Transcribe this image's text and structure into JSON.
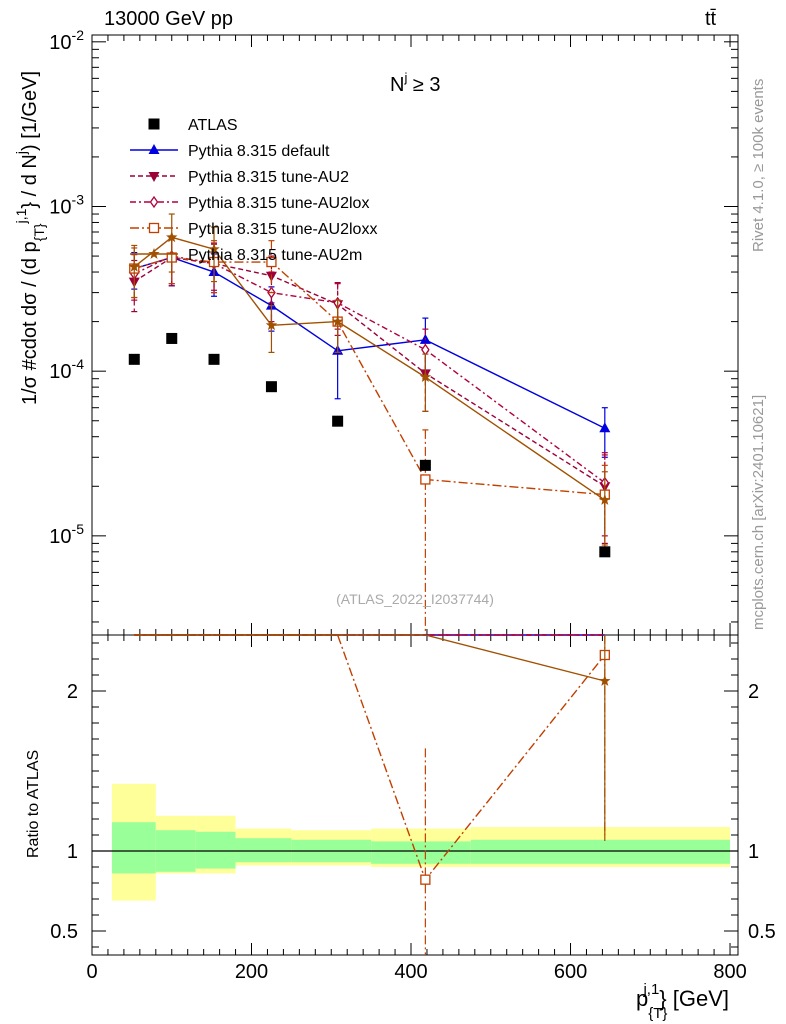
{
  "header": {
    "left": "13000 GeV pp",
    "right": "tt̄"
  },
  "side": {
    "rivet": "Rivet 4.1.0, ≥ 100k events",
    "mcplots": "mcplots.cern.ch [arXiv:2401.10621]"
  },
  "analysis_label": "(ATLAS_2022_I2037744)",
  "chart_data": {
    "type": "scatter",
    "title": "N^j ≥ 3",
    "xlabel": "p_{T}^{j,1} [GeV]",
    "ylabel": "1/σ #cdot dσ / (d p_{T}^{j,1} / d N^j) [1/GeV]",
    "ratio_ylabel": "Ratio to ATLAS",
    "xlim": [
      0,
      810
    ],
    "ylim": [
      2.5e-06,
      0.011
    ],
    "ratio_ylim": [
      0.35,
      2.35
    ],
    "x_ticks": [
      0,
      200,
      400,
      600,
      800
    ],
    "x_tick_labels": [
      "0",
      "200",
      "400",
      "600",
      "800"
    ],
    "y_ticks": [
      1e-05,
      0.0001,
      0.001,
      0.01
    ],
    "y_tick_labels": [
      "10^{-5}",
      "10^{-4}",
      "10^{-3}",
      "10^{-2}"
    ],
    "ratio_ticks": [
      0.5,
      1,
      2
    ],
    "ratio_tick_labels": [
      "0.5",
      "1",
      "2"
    ],
    "data": {
      "name": "ATLAS",
      "x": [
        53,
        100,
        153,
        225,
        308,
        418,
        643
      ],
      "xlo": [
        25,
        80,
        130,
        180,
        250,
        350,
        475
      ],
      "xhi": [
        80,
        130,
        180,
        250,
        350,
        475,
        800
      ],
      "y": [
        0.000118,
        0.000158,
        0.000118,
        8.05e-05,
        4.97e-05,
        2.68e-05,
        8e-06
      ],
      "band_stat_lo": [
        0.86,
        0.87,
        0.89,
        0.93,
        0.93,
        0.92,
        0.92
      ],
      "band_stat_hi": [
        1.18,
        1.13,
        1.12,
        1.08,
        1.07,
        1.06,
        1.07
      ],
      "band_tot_lo": [
        0.69,
        0.86,
        0.86,
        0.91,
        0.91,
        0.9,
        0.9
      ],
      "band_tot_hi": [
        1.42,
        1.22,
        1.22,
        1.14,
        1.13,
        1.14,
        1.15
      ]
    },
    "series": [
      {
        "name": "Pythia 8.315 default",
        "color": "#0000e0",
        "marker": "triangle-up",
        "dash": "",
        "x": [
          53,
          100,
          153,
          225,
          308,
          418,
          643
        ],
        "y": [
          0.00042,
          0.00049,
          0.0004,
          0.00025,
          0.000133,
          0.000155,
          4.5e-05
        ],
        "err": [
          0.000105,
          0.00016,
          0.000115,
          7.5e-05,
          6.5e-05,
          5.5e-05,
          1.5e-05
        ]
      },
      {
        "name": "Pythia 8.315 tune-AU2",
        "color": "#9b0039",
        "marker": "triangle-down",
        "dash": "5,3",
        "x": [
          53,
          100,
          153,
          225,
          308,
          418,
          643
        ],
        "y": [
          0.00035,
          0.00049,
          0.00045,
          0.00038,
          0.000255,
          9.7e-05,
          2e-05
        ],
        "err": [
          0.00012,
          0.00016,
          0.00015,
          0.00012,
          9e-05,
          4e-05,
          1.1e-05
        ]
      },
      {
        "name": "Pythia 8.315 tune-AU2lox",
        "color": "#b0003a",
        "marker": "diamond-open",
        "dash": "6,3,2,3",
        "x": [
          53,
          100,
          153,
          225,
          308,
          418,
          643
        ],
        "y": [
          0.00039,
          0.0005,
          0.00045,
          0.0003,
          0.00026,
          0.000135,
          2.1e-05
        ],
        "err": [
          0.00012,
          0.00016,
          0.00014,
          0.0001,
          8e-05,
          4.5e-05,
          1.1e-05
        ]
      },
      {
        "name": "Pythia 8.315 tune-AU2loxx",
        "color": "#c04000",
        "marker": "square-open",
        "dash": "9,3,2,3",
        "x": [
          53,
          100,
          153,
          225,
          308,
          418,
          643
        ],
        "y": [
          0.00042,
          0.00049,
          0.00046,
          0.00046,
          0.0002,
          2.2e-05,
          1.78e-05
        ],
        "err": [
          0.00014,
          0.00015,
          0.00016,
          0.00016,
          7e-05,
          2.2e-05,
          9e-06
        ]
      },
      {
        "name": "Pythia 8.315 tune-AU2m",
        "color": "#a05000",
        "marker": "star",
        "dash": "",
        "x": [
          53,
          100,
          153,
          225,
          308,
          418,
          643
        ],
        "y": [
          0.00043,
          0.00065,
          0.00055,
          0.00019,
          0.0002,
          9.2e-05,
          1.65e-05
        ],
        "err": [
          0.00015,
          0.00025,
          0.0002,
          6e-05,
          7e-05,
          3.5e-05,
          8e-06
        ]
      }
    ]
  }
}
